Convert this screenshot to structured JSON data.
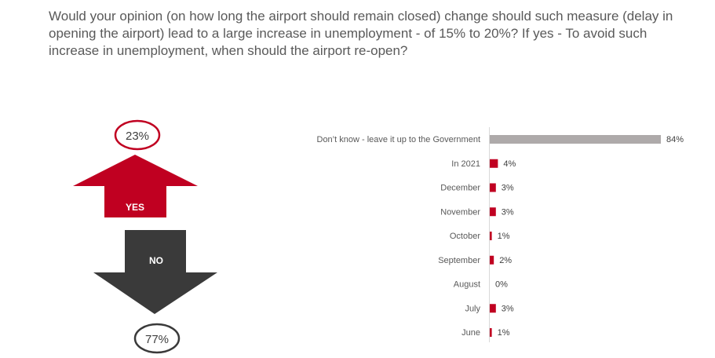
{
  "title": "Would your opinion (on how long the airport should remain closed) change should such measure (delay in opening the airport) lead to a large increase in unemployment - of 15% to 20%? If yes - To avoid such increase in unemployment, when should the airport re-open?",
  "colors": {
    "yes": "#C00021",
    "no": "#3A3A3A",
    "grey_bar": "#AEAAAA",
    "red_bar": "#C00021"
  },
  "yes_no": {
    "yes_label": "YES",
    "yes_value": "23%",
    "no_label": "NO",
    "no_value": "77%"
  },
  "chart_data": {
    "type": "bar",
    "orientation": "horizontal",
    "categories": [
      "Don't know - leave it up to the Government",
      "In 2021",
      "December",
      "November",
      "October",
      "September",
      "August",
      "July",
      "June"
    ],
    "values": [
      84,
      4,
      3,
      3,
      1,
      2,
      0,
      3,
      1
    ],
    "labels": [
      "84%",
      "4%",
      "3%",
      "3%",
      "1%",
      "2%",
      "0%",
      "3%",
      "1%"
    ],
    "unit": "%",
    "xlim": [
      0,
      84
    ],
    "grid": false
  }
}
